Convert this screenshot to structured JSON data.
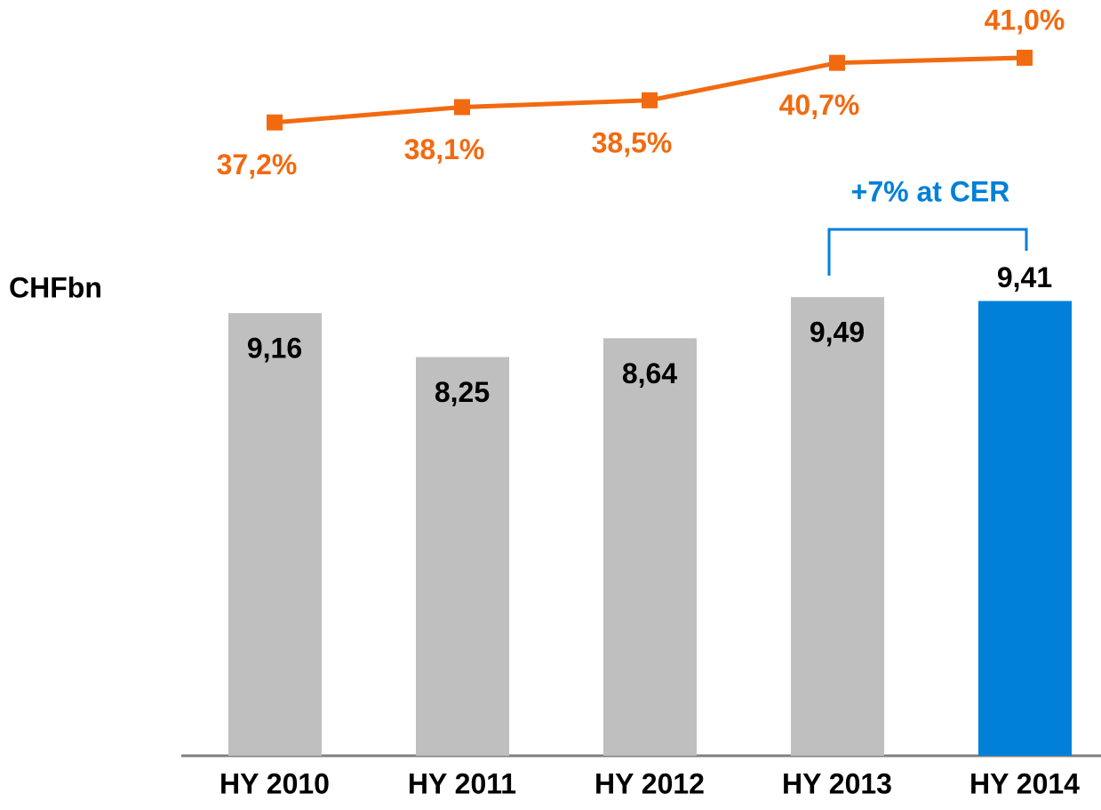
{
  "chart_data": {
    "type": "bar-line",
    "categories": [
      "HY 2010",
      "HY 2011",
      "HY 2012",
      "HY 2013",
      "HY 2014"
    ],
    "y_label": "CHFbn",
    "annotation": "+7% at CER",
    "ylim": [
      0,
      15.5
    ],
    "y2lim": [
      0,
      44
    ],
    "series": [
      {
        "type": "bar",
        "values": [
          9.16,
          8.25,
          8.64,
          9.49,
          9.41
        ],
        "value_labels": [
          "9,16",
          "8,25",
          "8,64",
          "9,49",
          "9,41"
        ],
        "colors": [
          "#bfbfbf",
          "#bfbfbf",
          "#bfbfbf",
          "#bfbfbf",
          "#0080d8"
        ]
      },
      {
        "type": "line",
        "axis": "y2",
        "color": "#f26a10",
        "values": [
          37.2,
          38.1,
          38.5,
          40.7,
          41.0
        ],
        "value_labels": [
          "37,2%",
          "38,1%",
          "38,5%",
          "40,7%",
          "41,0%"
        ]
      }
    ]
  }
}
